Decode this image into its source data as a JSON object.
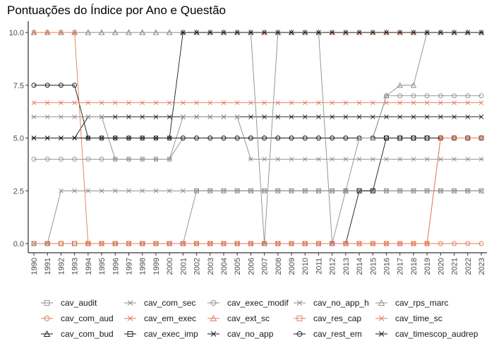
{
  "chart_data": {
    "type": "line",
    "title": "Pontuações do Índice por Ano e Questão",
    "xlabel": "",
    "ylabel": "",
    "ylim": [
      -0.35,
      10.35
    ],
    "yticks": [
      0.0,
      2.5,
      5.0,
      7.5,
      10.0
    ],
    "ytick_labels": [
      "0.0",
      "2.5",
      "5.0",
      "7.5",
      "10.0"
    ],
    "grid": false,
    "legend_position": "bottom",
    "x": [
      1990,
      1991,
      1992,
      1993,
      1994,
      1995,
      1996,
      1997,
      1998,
      1999,
      2000,
      2001,
      2002,
      2003,
      2004,
      2005,
      2006,
      2007,
      2008,
      2009,
      2010,
      2011,
      2012,
      2013,
      2014,
      2015,
      2016,
      2017,
      2018,
      2019,
      2020,
      2021,
      2022,
      2023
    ],
    "series": [
      {
        "name": "cav_audit",
        "color": "#8c8c8c",
        "marker": "square",
        "values": [
          0,
          0,
          0,
          0,
          0,
          0,
          0,
          0,
          0,
          0,
          0,
          0,
          2.5,
          2.5,
          2.5,
          2.5,
          2.5,
          2.5,
          2.5,
          2.5,
          2.5,
          2.5,
          2.5,
          2.5,
          2.5,
          2.5,
          2.5,
          2.5,
          2.5,
          2.5,
          2.5,
          2.5,
          2.5,
          2.5
        ]
      },
      {
        "name": "cav_com_aud",
        "color": "#e07b54",
        "marker": "circle",
        "values": [
          0,
          0,
          0,
          0,
          0,
          0,
          0,
          0,
          0,
          0,
          0,
          0,
          0,
          0,
          0,
          0,
          0,
          0,
          0,
          0,
          0,
          0,
          0,
          0,
          0,
          0,
          0,
          0,
          0,
          0,
          0,
          0,
          0,
          0
        ]
      },
      {
        "name": "cav_com_bud",
        "color": "#1a1a1a",
        "marker": "triangle",
        "values": [
          10,
          10,
          10,
          10,
          10,
          10,
          10,
          10,
          10,
          10,
          10,
          10,
          10,
          10,
          10,
          10,
          10,
          10,
          10,
          10,
          10,
          10,
          10,
          10,
          10,
          10,
          10,
          10,
          10,
          10,
          10,
          10,
          10,
          10
        ]
      },
      {
        "name": "cav_com_sec",
        "color": "#8c8c8c",
        "marker": "x",
        "values": [
          0,
          0,
          2.5,
          2.5,
          2.5,
          2.5,
          2.5,
          2.5,
          2.5,
          2.5,
          2.5,
          2.5,
          2.5,
          2.5,
          2.5,
          2.5,
          2.5,
          2.5,
          2.5,
          2.5,
          2.5,
          2.5,
          2.5,
          2.5,
          2.5,
          2.5,
          2.5,
          2.5,
          2.5,
          2.5,
          2.5,
          2.5,
          2.5,
          2.5
        ]
      },
      {
        "name": "cav_em_exec",
        "color": "#e07b54",
        "marker": "x",
        "values": [
          6.67,
          6.67,
          6.67,
          6.67,
          6.67,
          6.67,
          6.67,
          6.67,
          6.67,
          6.67,
          6.67,
          6.67,
          6.67,
          6.67,
          6.67,
          6.67,
          6.67,
          6.67,
          6.67,
          6.67,
          6.67,
          6.67,
          6.67,
          6.67,
          6.67,
          6.67,
          6.67,
          6.67,
          6.67,
          6.67,
          6.67,
          6.67,
          6.67,
          6.67
        ]
      },
      {
        "name": "cav_exec_imp",
        "color": "#1a1a1a",
        "marker": "square",
        "values": [
          0,
          0,
          0,
          0,
          0,
          0,
          0,
          0,
          0,
          0,
          0,
          0,
          0,
          0,
          0,
          0,
          0,
          0,
          0,
          0,
          0,
          0,
          0,
          0,
          2.5,
          2.5,
          5,
          5,
          5,
          5,
          5,
          5,
          5,
          5
        ]
      },
      {
        "name": "cav_exec_modif",
        "color": "#8c8c8c",
        "marker": "circle",
        "values": [
          4,
          4,
          4,
          4,
          4,
          4,
          4,
          4,
          4,
          4,
          4,
          5,
          5,
          5,
          5,
          5,
          5,
          5,
          5,
          5,
          5,
          5,
          5,
          5,
          5,
          5,
          7,
          7,
          7,
          7,
          7,
          7,
          7,
          7
        ]
      },
      {
        "name": "cav_ext_sc",
        "color": "#e07b54",
        "marker": "triangle",
        "values": [
          10,
          10,
          10,
          10,
          10,
          10,
          10,
          10,
          10,
          10,
          10,
          10,
          10,
          10,
          10,
          10,
          10,
          10,
          10,
          10,
          10,
          10,
          10,
          10,
          10,
          10,
          10,
          10,
          10,
          10,
          10,
          10,
          10,
          10
        ]
      },
      {
        "name": "cav_no_app",
        "color": "#1a1a1a",
        "marker": "x",
        "values": [
          5,
          5,
          5,
          5,
          6,
          6,
          6,
          6,
          6,
          6,
          6,
          6,
          6,
          6,
          6,
          6,
          6,
          6,
          6,
          6,
          6,
          6,
          6,
          6,
          6,
          6,
          6,
          6,
          6,
          6,
          6,
          6,
          6,
          6
        ]
      },
      {
        "name": "cav_no_app_h",
        "color": "#8c8c8c",
        "marker": "asterisk",
        "values": [
          6,
          6,
          6,
          6,
          6,
          6,
          4,
          4,
          4,
          4,
          4,
          6,
          6,
          6,
          6,
          6,
          4,
          4,
          4,
          4,
          4,
          4,
          4,
          4,
          4,
          4,
          4,
          4,
          4,
          4,
          4,
          4,
          4,
          4
        ]
      },
      {
        "name": "cav_res_cap",
        "color": "#e07b54",
        "marker": "square",
        "values": [
          0,
          0,
          0,
          0,
          0,
          0,
          0,
          0,
          0,
          0,
          0,
          0,
          0,
          0,
          0,
          0,
          0,
          0,
          0,
          0,
          0,
          0,
          0,
          0,
          0,
          0,
          0,
          0,
          0,
          0,
          5,
          5,
          5,
          5
        ]
      },
      {
        "name": "cav_rest_em",
        "color": "#1a1a1a",
        "marker": "circle",
        "values": [
          7.5,
          7.5,
          7.5,
          7.5,
          5,
          5,
          5,
          5,
          5,
          5,
          5,
          5,
          5,
          5,
          5,
          5,
          5,
          5,
          5,
          5,
          5,
          5,
          5,
          5,
          5,
          5,
          5,
          5,
          5,
          5,
          5,
          5,
          5,
          5
        ]
      },
      {
        "name": "cav_rps_marc",
        "color": "#8c8c8c",
        "marker": "triangle",
        "values": [
          10,
          10,
          10,
          10,
          10,
          10,
          10,
          10,
          10,
          10,
          10,
          10,
          10,
          10,
          10,
          10,
          10,
          0,
          10,
          10,
          10,
          10,
          0,
          2.5,
          5,
          5,
          7,
          7.5,
          7.5,
          10,
          10,
          10,
          10,
          10
        ]
      },
      {
        "name": "cav_time_sc",
        "color": "#e07b54",
        "marker": "x",
        "values": [
          10,
          10,
          10,
          10,
          0,
          0,
          0,
          0,
          0,
          0,
          0,
          0,
          0,
          0,
          0,
          0,
          0,
          0,
          0,
          0,
          0,
          0,
          0,
          0,
          0,
          0,
          0,
          0,
          0,
          0,
          5,
          5,
          5,
          5
        ]
      },
      {
        "name": "cav_timescop_audrep",
        "color": "#1a1a1a",
        "marker": "asterisk",
        "values": [
          5,
          5,
          5,
          5,
          5,
          5,
          5,
          5,
          5,
          5,
          5,
          10,
          10,
          10,
          10,
          10,
          10,
          10,
          10,
          10,
          10,
          10,
          10,
          10,
          10,
          10,
          10,
          10,
          10,
          10,
          10,
          10,
          10,
          10
        ]
      }
    ]
  }
}
